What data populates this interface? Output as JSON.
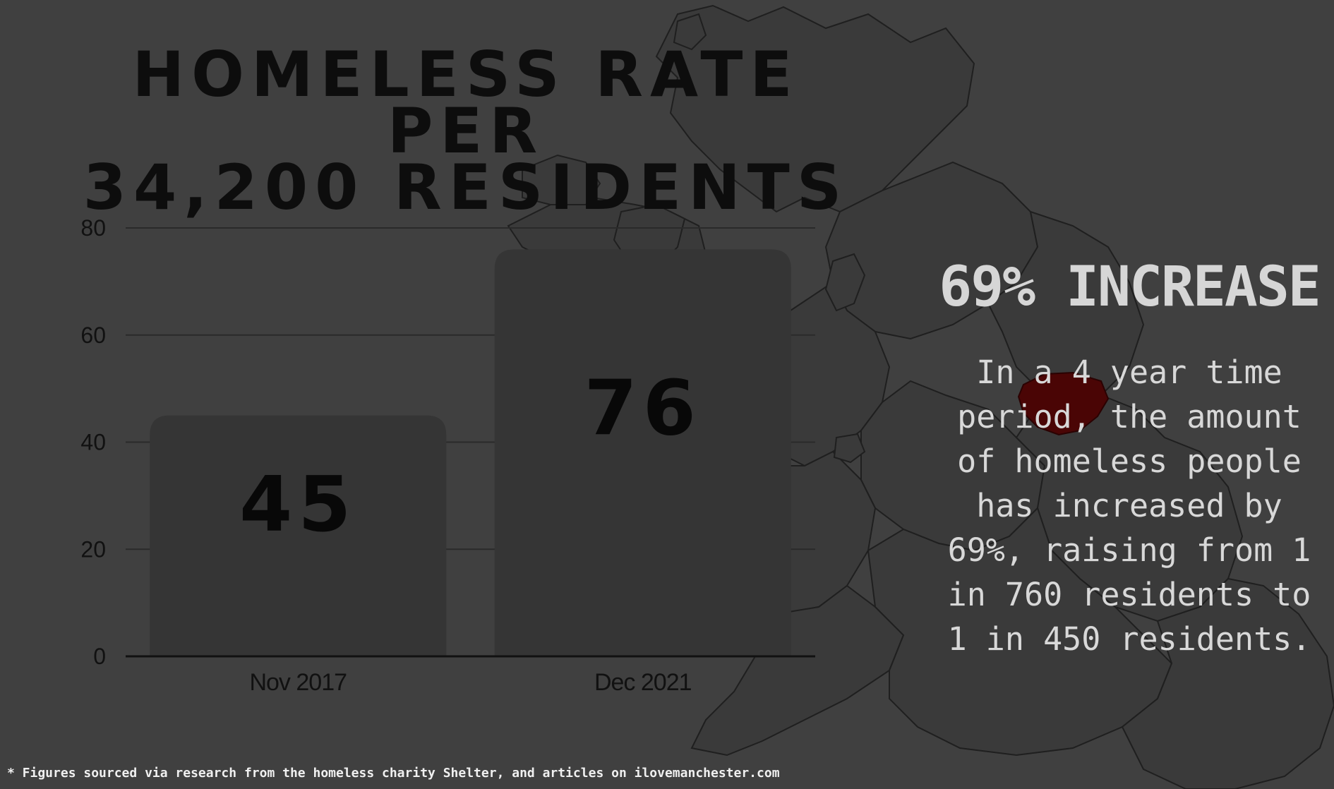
{
  "title": {
    "line1": "HOMELESS RATE PER",
    "line2": "34,200 RESIDENTS"
  },
  "colors": {
    "background": "#404040",
    "bar": "#353535",
    "title": "#0d0d0d",
    "axis_text": "#111111",
    "body_text": "#d8d8d8",
    "highlight_region": "#4a0505",
    "map_line": "#222222"
  },
  "chart_data": {
    "type": "bar",
    "categories": [
      "Nov 2017",
      "Dec 2021"
    ],
    "values": [
      45,
      76
    ],
    "data_labels": [
      "45",
      "76"
    ],
    "ylim": [
      0,
      80
    ],
    "yticks": [
      0,
      20,
      40,
      60,
      80
    ],
    "ytick_labels": [
      "0",
      "20",
      "40",
      "60",
      "80"
    ],
    "xlabel": "",
    "ylabel": "",
    "grid": true,
    "legend": "none"
  },
  "callout": {
    "headline": "69% INCREASE",
    "body": "In a 4 year time period, the amount of homeless people has increased by 69%, raising from 1 in 760 residents to 1 in 450 residents."
  },
  "footnote": "* Figures sourced via research from the homeless charity Shelter, and articles on ilovemanchester.com"
}
